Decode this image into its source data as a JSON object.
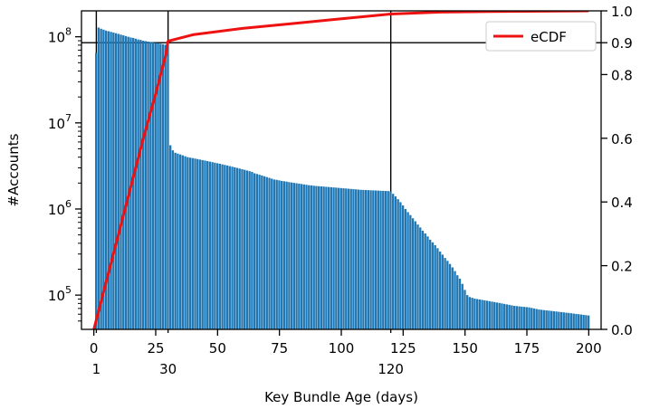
{
  "chart_data": {
    "type": "bar",
    "xlabel": "Key Bundle Age (days)",
    "ylabel": "#Accounts",
    "xlim": [
      -5,
      205
    ],
    "ylim_log": [
      40000,
      200000000
    ],
    "y2lim": [
      0,
      1.0
    ],
    "x_ticks": [
      0,
      25,
      50,
      75,
      100,
      125,
      150,
      175,
      200
    ],
    "x_extra_ticks": [
      1,
      30,
      120
    ],
    "y_ticks_log": [
      {
        "value": 100000,
        "base": "10",
        "exp": "5"
      },
      {
        "value": 1000000,
        "base": "10",
        "exp": "6"
      },
      {
        "value": 10000000,
        "base": "10",
        "exp": "7"
      },
      {
        "value": 100000000,
        "base": "10",
        "exp": "8"
      }
    ],
    "y2_ticks": [
      "0.0",
      "0.2",
      "0.4",
      "0.6",
      "0.8",
      "0.9",
      "1.0"
    ],
    "reference_lines": {
      "x": [
        1,
        30,
        120
      ],
      "y2": [
        0.9
      ]
    },
    "legend": {
      "entries": [
        "eCDF"
      ],
      "placement": "top-right"
    },
    "bar_color": "#1f77b4",
    "ecdf_color": "#ee1111",
    "series": [
      {
        "kind": "histogram",
        "x_start": 1,
        "values": [
          65000000,
          128000000,
          124000000,
          121000000,
          118000000,
          116000000,
          114000000,
          112000000,
          110000000,
          108000000,
          106000000,
          104000000,
          102000000,
          100000000,
          98000000,
          97000000,
          95000000,
          93000000,
          92000000,
          90000000,
          89000000,
          88000000,
          87000000,
          86000000,
          85000000,
          84000000,
          83000000,
          82000000,
          81000000,
          80000000,
          5500000,
          4800000,
          4500000,
          4400000,
          4300000,
          4200000,
          4100000,
          4000000,
          3950000,
          3900000,
          3850000,
          3800000,
          3750000,
          3700000,
          3650000,
          3600000,
          3550000,
          3500000,
          3450000,
          3400000,
          3350000,
          3300000,
          3250000,
          3200000,
          3150000,
          3100000,
          3050000,
          3000000,
          2950000,
          2900000,
          2850000,
          2800000,
          2750000,
          2700000,
          2600000,
          2550000,
          2500000,
          2450000,
          2400000,
          2350000,
          2300000,
          2250000,
          2200000,
          2180000,
          2150000,
          2120000,
          2100000,
          2080000,
          2050000,
          2030000,
          2010000,
          1990000,
          1970000,
          1950000,
          1930000,
          1910000,
          1890000,
          1880000,
          1860000,
          1850000,
          1840000,
          1830000,
          1820000,
          1810000,
          1800000,
          1790000,
          1780000,
          1770000,
          1760000,
          1750000,
          1740000,
          1730000,
          1720000,
          1710000,
          1700000,
          1690000,
          1680000,
          1670000,
          1665000,
          1660000,
          1655000,
          1650000,
          1645000,
          1640000,
          1635000,
          1630000,
          1625000,
          1620000,
          1615000,
          1600000,
          1500000,
          1400000,
          1300000,
          1200000,
          1100000,
          1000000,
          920000,
          850000,
          780000,
          720000,
          660000,
          610000,
          560000,
          520000,
          480000,
          440000,
          410000,
          380000,
          350000,
          320000,
          295000,
          270000,
          250000,
          230000,
          210000,
          190000,
          170000,
          155000,
          135000,
          115000,
          100000,
          95000,
          93000,
          91000,
          90000,
          89000,
          88000,
          87000,
          86000,
          85000,
          84000,
          83000,
          82000,
          81000,
          80000,
          79000,
          78000,
          77000,
          76000,
          75000,
          74500,
          74000,
          73500,
          73000,
          72500,
          72000,
          71000,
          70000,
          69000,
          68000,
          67500,
          67000,
          66500,
          66000,
          65500,
          65000,
          64500,
          64000,
          63500,
          63000,
          62500,
          62000,
          61500,
          61000,
          60500,
          60000,
          59500,
          59000,
          58500,
          58000
        ]
      },
      {
        "name": "eCDF",
        "kind": "line",
        "axis": "right",
        "x": [
          0,
          1,
          5,
          10,
          15,
          20,
          25,
          29,
          30,
          40,
          60,
          80,
          100,
          120,
          140,
          160,
          180,
          200
        ],
        "y": [
          0.0,
          0.03,
          0.15,
          0.3,
          0.45,
          0.6,
          0.74,
          0.86,
          0.905,
          0.925,
          0.945,
          0.96,
          0.975,
          0.99,
          0.996,
          0.998,
          0.999,
          1.0
        ]
      }
    ]
  }
}
